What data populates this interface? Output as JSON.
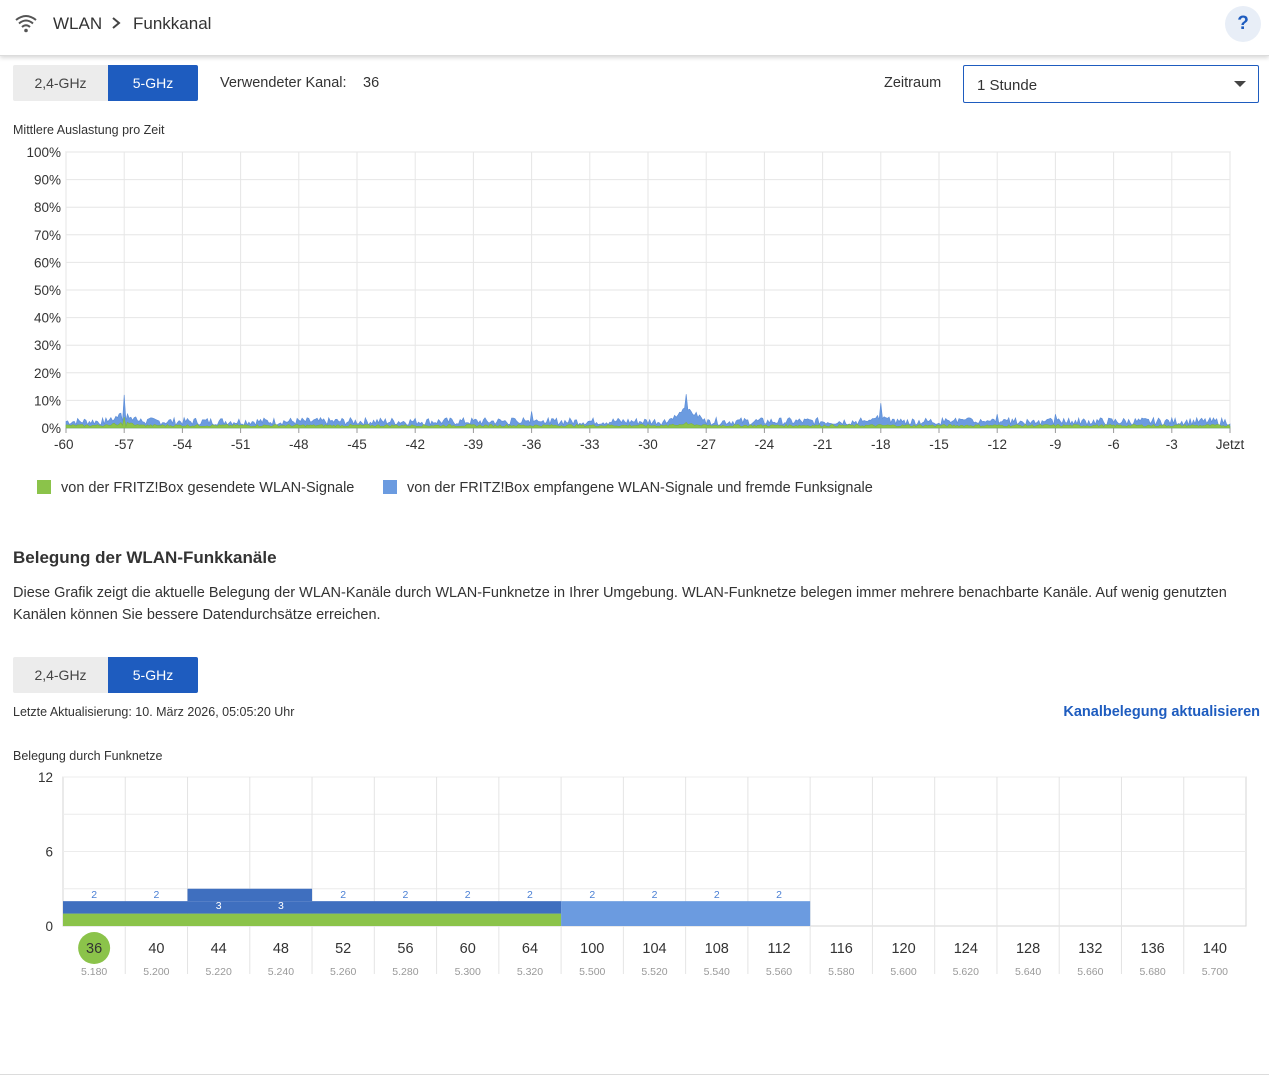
{
  "breadcrumb": {
    "root": "WLAN",
    "current": "Funkkanal"
  },
  "help": {
    "label": "?"
  },
  "bands_top": {
    "options": [
      "2,4-GHz",
      "5-GHz"
    ],
    "selected": "5-GHz"
  },
  "used_channel": {
    "label": "Verwendeter Kanal:",
    "value": "36"
  },
  "zeitraum": {
    "label": "Zeitraum",
    "value": "1 Stunde"
  },
  "utilization_chart": {
    "title": "Mittlere Auslastung pro Zeit",
    "y_ticks": [
      "100%",
      "90%",
      "80%",
      "70%",
      "60%",
      "50%",
      "40%",
      "30%",
      "20%",
      "10%",
      "0%"
    ],
    "x_ticks": [
      "-60",
      "-57",
      "-54",
      "-51",
      "-48",
      "-45",
      "-42",
      "-39",
      "-36",
      "-33",
      "-30",
      "-27",
      "-24",
      "-21",
      "-18",
      "-15",
      "-12",
      "-9",
      "-6",
      "-3",
      "Jetzt"
    ],
    "legend": {
      "sent": "von der FRITZ!Box gesendete WLAN-Signale",
      "received": "von der FRITZ!Box empfangene WLAN-Signale und fremde Funksignale"
    },
    "colors": {
      "sent": "#8bc34a",
      "received": "#6b9be0"
    }
  },
  "section": {
    "title": "Belegung der WLAN-Funkkanäle",
    "description": "Diese Grafik zeigt die aktuelle Belegung der WLAN-Kanäle durch WLAN-Funknetze in Ihrer Umgebung. WLAN-Funknetze belegen immer mehrere benachbarte Kanäle. Auf wenig genutzten Kanälen können Sie bessere Datendurchsätze erreichen."
  },
  "bands_bottom": {
    "options": [
      "2,4-GHz",
      "5-GHz"
    ],
    "selected": "5-GHz"
  },
  "last_update": "Letzte Aktualisierung: 10. März 2026, 05:05:20 Uhr",
  "refresh_link": "Kanalbelegung aktualisieren",
  "chart_data": [
    {
      "type": "area",
      "title": "Mittlere Auslastung pro Zeit",
      "x_unit": "minutes",
      "xlim": [
        -60,
        0
      ],
      "ylim": [
        0,
        100
      ],
      "y_unit": "%",
      "grid": true,
      "legend_position": "bottom-left",
      "series": [
        {
          "name": "von der FRITZ!Box gesendete WLAN-Signale",
          "typical_percent": 1,
          "peaks": [
            [
              -57,
              4
            ],
            [
              -28,
              3
            ]
          ]
        },
        {
          "name": "von der FRITZ!Box empfangene WLAN-Signale und fremde Funksignale",
          "typical_percent": 2,
          "peaks": [
            [
              -57,
              12
            ],
            [
              -36,
              6
            ],
            [
              -28,
              18
            ],
            [
              -18,
              9
            ],
            [
              -14,
              5
            ],
            [
              -12,
              5
            ],
            [
              -9,
              5
            ]
          ]
        }
      ]
    },
    {
      "type": "bar",
      "title": "Belegung durch Funknetze",
      "ylim": [
        0,
        12
      ],
      "y_ticks": [
        0,
        6,
        12
      ],
      "grid": true,
      "categories": [
        "36",
        "40",
        "44",
        "48",
        "52",
        "56",
        "60",
        "64",
        "100",
        "104",
        "108",
        "112",
        "116",
        "120",
        "124",
        "128",
        "132",
        "136",
        "140"
      ],
      "frequencies": [
        "5.180",
        "5.200",
        "5.220",
        "5.240",
        "5.260",
        "5.280",
        "5.300",
        "5.320",
        "5.500",
        "5.520",
        "5.540",
        "5.560",
        "5.580",
        "5.600",
        "5.620",
        "5.640",
        "5.660",
        "5.680",
        "5.700"
      ],
      "selected_channel": "36",
      "values": [
        2,
        2,
        3,
        3,
        2,
        2,
        2,
        2,
        2,
        2,
        2,
        2,
        0,
        0,
        0,
        0,
        0,
        0,
        0
      ],
      "value_labels": [
        "2",
        "2",
        "3",
        "3",
        "2",
        "2",
        "2",
        "2",
        "2",
        "2",
        "2",
        "2",
        "",
        "",
        "",
        "",
        "",
        "",
        ""
      ],
      "segments": [
        {
          "kind": "own",
          "from": "36",
          "to": "64",
          "height": 1,
          "color": "#8bc34a"
        },
        {
          "kind": "foreign",
          "from": "36",
          "to": "64",
          "height": 1,
          "color": "#3f6fbf"
        },
        {
          "kind": "foreign",
          "from": "44",
          "to": "48",
          "height": 1,
          "color": "#3f6fbf"
        },
        {
          "kind": "foreign",
          "from": "100",
          "to": "112",
          "height": 2,
          "color": "#6b9be0"
        }
      ]
    }
  ]
}
